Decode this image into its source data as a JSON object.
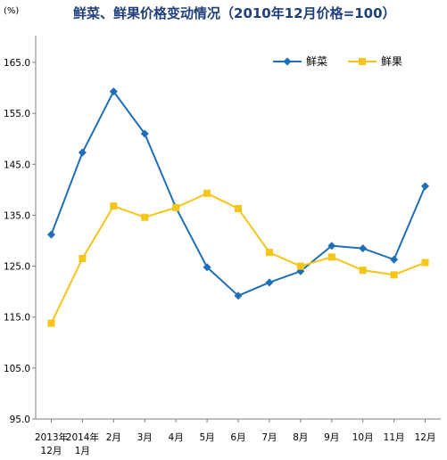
{
  "chart_data": {
    "type": "line",
    "title": "鲜菜、鲜果价格变动情况（2010年12月价格=100）",
    "unit_label": "(%)",
    "categories": [
      [
        "2013年",
        "12月"
      ],
      [
        "2014年",
        "1月"
      ],
      [
        "2月"
      ],
      [
        "3月"
      ],
      [
        "4月"
      ],
      [
        "5月"
      ],
      [
        "6月"
      ],
      [
        "7月"
      ],
      [
        "8月"
      ],
      [
        "9月"
      ],
      [
        "10月"
      ],
      [
        "11月"
      ],
      [
        "12月"
      ]
    ],
    "ylim": [
      95.0,
      165.0
    ],
    "yticks": [
      "95.0",
      "105.0",
      "115.0",
      "125.0",
      "135.0",
      "145.0",
      "155.0",
      "165.0"
    ],
    "legend_position": "top-right",
    "grid": false,
    "series": [
      {
        "name": "鲜菜",
        "color": "#1f6fb8",
        "marker": "diamond",
        "values": [
          131.2,
          147.3,
          159.3,
          151.0,
          136.5,
          124.8,
          119.2,
          121.8,
          124.0,
          129.0,
          128.5,
          126.3,
          140.7
        ]
      },
      {
        "name": "鲜果",
        "color": "#f5c518",
        "marker": "square",
        "values": [
          113.8,
          126.5,
          136.8,
          134.6,
          136.5,
          139.3,
          136.3,
          127.7,
          125.0,
          126.8,
          124.2,
          123.3,
          125.7
        ]
      }
    ]
  }
}
